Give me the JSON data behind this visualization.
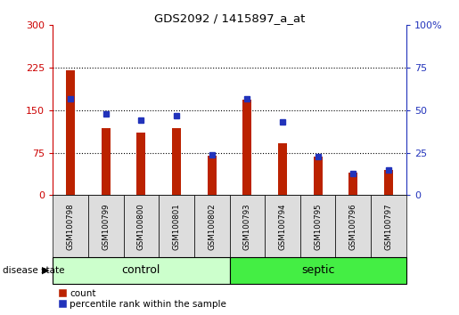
{
  "title": "GDS2092 / 1415897_a_at",
  "samples": [
    "GSM100798",
    "GSM100799",
    "GSM100800",
    "GSM100801",
    "GSM100802",
    "GSM100793",
    "GSM100794",
    "GSM100795",
    "GSM100796",
    "GSM100797"
  ],
  "counts": [
    220,
    118,
    110,
    118,
    70,
    168,
    92,
    68,
    40,
    45
  ],
  "percentiles": [
    57,
    48,
    44,
    47,
    24,
    57,
    43,
    23,
    13,
    15
  ],
  "control_label": "control",
  "septic_label": "septic",
  "disease_state_label": "disease state",
  "left_ylim": [
    0,
    300
  ],
  "left_yticks": [
    0,
    75,
    150,
    225,
    300
  ],
  "right_ylim": [
    0,
    100
  ],
  "right_yticks": [
    0,
    25,
    50,
    75,
    100
  ],
  "bar_color": "#bb2200",
  "percentile_color": "#2233bb",
  "control_bg_light": "#ccffcc",
  "septic_bg": "#44ee44",
  "sample_bg": "#dddddd",
  "left_tick_color": "#cc0000",
  "right_tick_color": "#2233bb",
  "fig_bg": "#ffffff"
}
